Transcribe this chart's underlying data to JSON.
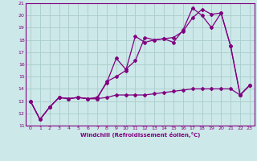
{
  "xlabel": "Windchill (Refroidissement éolien,°C)",
  "bg_color": "#cce8e8",
  "grid_color": "#aacccc",
  "line_color": "#800080",
  "xlim": [
    -0.5,
    23.5
  ],
  "ylim": [
    11,
    21
  ],
  "xticks": [
    0,
    1,
    2,
    3,
    4,
    5,
    6,
    7,
    8,
    9,
    10,
    11,
    12,
    13,
    14,
    15,
    16,
    17,
    18,
    19,
    20,
    21,
    22,
    23
  ],
  "yticks": [
    11,
    12,
    13,
    14,
    15,
    16,
    17,
    18,
    19,
    20,
    21
  ],
  "series1_x": [
    0,
    1,
    2,
    3,
    4,
    5,
    6,
    7,
    8,
    9,
    10,
    11,
    12,
    13,
    14,
    15,
    16,
    17,
    18,
    19,
    20,
    21,
    22,
    23
  ],
  "series1_y": [
    13.0,
    11.5,
    12.5,
    13.3,
    13.2,
    13.3,
    13.2,
    13.2,
    13.3,
    13.5,
    13.5,
    13.5,
    13.5,
    13.6,
    13.7,
    13.8,
    13.9,
    14.0,
    14.0,
    14.0,
    14.0,
    14.0,
    13.5,
    14.3
  ],
  "series2_x": [
    0,
    1,
    2,
    3,
    4,
    5,
    6,
    7,
    8,
    9,
    10,
    11,
    12,
    13,
    14,
    15,
    16,
    17,
    18,
    19,
    20,
    21,
    22,
    23
  ],
  "series2_y": [
    13.0,
    11.5,
    12.5,
    13.3,
    13.2,
    13.3,
    13.2,
    13.2,
    14.6,
    15.0,
    15.5,
    18.3,
    17.8,
    18.0,
    18.1,
    17.8,
    18.8,
    20.6,
    20.0,
    19.0,
    20.2,
    17.5,
    13.5,
    14.3
  ],
  "series3_x": [
    0,
    1,
    2,
    3,
    4,
    5,
    6,
    7,
    8,
    9,
    10,
    11,
    12,
    13,
    14,
    15,
    16,
    17,
    18,
    19,
    20,
    21,
    22,
    23
  ],
  "series3_y": [
    13.0,
    11.5,
    12.5,
    13.3,
    13.2,
    13.3,
    13.2,
    13.3,
    14.5,
    16.5,
    15.6,
    16.3,
    18.2,
    18.0,
    18.1,
    18.2,
    18.7,
    19.8,
    20.5,
    20.1,
    20.2,
    17.5,
    13.5,
    14.3
  ]
}
